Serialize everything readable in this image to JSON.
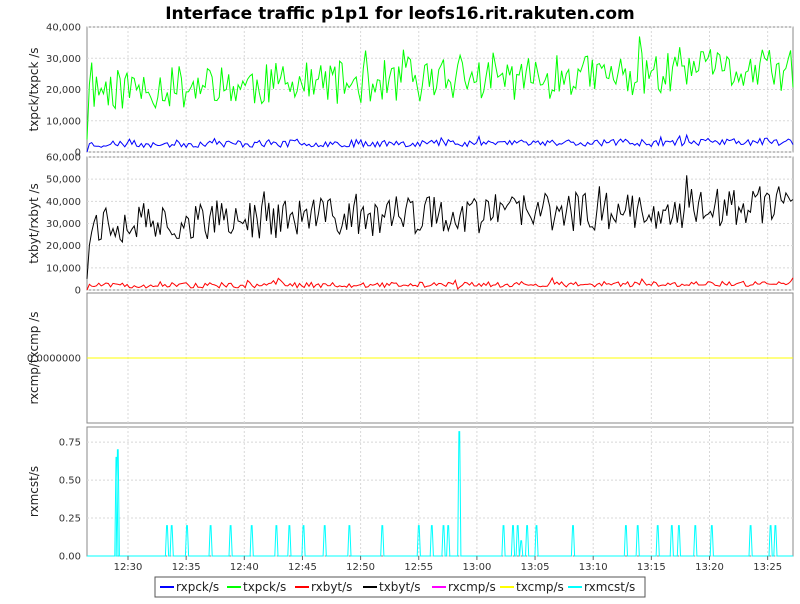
{
  "chart_data": {
    "type": "line",
    "title": "Interface traffic p1p1 for leofs16.rit.rakuten.com",
    "time_ticks": [
      "12:30",
      "12:35",
      "12:40",
      "12:45",
      "12:50",
      "12:55",
      "13:00",
      "13:05",
      "13:10",
      "13:15",
      "13:20",
      "13:25"
    ],
    "legend": [
      {
        "name": "rxpck/s",
        "color": "#0000ff"
      },
      {
        "name": "txpck/s",
        "color": "#00ff00"
      },
      {
        "name": "rxbyt/s",
        "color": "#ff0000"
      },
      {
        "name": "txbyt/s",
        "color": "#000000"
      },
      {
        "name": "rxcmp/s",
        "color": "#ff00ff"
      },
      {
        "name": "txcmp/s",
        "color": "#ffff00"
      },
      {
        "name": "rxmcst/s",
        "color": "#00ffff"
      }
    ],
    "panels": [
      {
        "ylabel": "txpck/txpck /s",
        "ylim": [
          0,
          40000
        ],
        "yticks": [
          0,
          10000,
          20000,
          30000,
          40000
        ],
        "ytick_labels": [
          "0",
          "10,000",
          "20,000",
          "30,000",
          "40,000"
        ],
        "series": [
          {
            "name": "txpck/s",
            "color": "#00ff00",
            "base": 20000,
            "trend": 6000,
            "amp": 7000,
            "spikes": 0.12,
            "spike_amp": 9000,
            "seed": 11,
            "start": 4000
          },
          {
            "name": "rxpck/s",
            "color": "#0000ff",
            "base": 2500,
            "trend": 800,
            "amp": 1200,
            "spikes": 0.08,
            "spike_amp": 2000,
            "seed": 23,
            "start": 0
          }
        ]
      },
      {
        "ylabel": "txbyt/rxbyt /s",
        "ylim": [
          0,
          60000
        ],
        "yticks": [
          0,
          10000,
          20000,
          30000,
          40000,
          50000,
          60000
        ],
        "ytick_labels": [
          "0",
          "10,000",
          "20,000",
          "30,000",
          "40,000",
          "50,000",
          "60,000"
        ],
        "series": [
          {
            "name": "txbyt/s",
            "color": "#000000",
            "base": 30000,
            "trend": 8000,
            "amp": 9000,
            "spikes": 0.12,
            "spike_amp": 14000,
            "seed": 37,
            "start": 5000
          },
          {
            "name": "rxbyt/s",
            "color": "#ff0000",
            "base": 2000,
            "trend": 800,
            "amp": 1200,
            "spikes": 0.1,
            "spike_amp": 3500,
            "seed": 51,
            "start": 0
          }
        ]
      },
      {
        "ylabel": "rxcmp/txcmp /s",
        "ylim": [
          -1,
          1
        ],
        "yticks": [
          0
        ],
        "ytick_labels": [
          "0.0000000"
        ],
        "series": [
          {
            "name": "rxcmp/s",
            "color": "#ff00ff",
            "constant": 0
          },
          {
            "name": "txcmp/s",
            "color": "#ffff00",
            "constant": 0
          }
        ]
      },
      {
        "ylabel": "rxmcst/s",
        "ylim": [
          0,
          0.85
        ],
        "yticks": [
          0,
          0.25,
          0.5,
          0.75
        ],
        "ytick_labels": [
          "0.00",
          "0.25",
          "0.50",
          "0.75"
        ],
        "series": [
          {
            "name": "rxmcst/s",
            "color": "#00ffff",
            "pulses": [
              [
                12.5,
                0.65
              ],
              [
                13.1,
                0.7
              ],
              [
                34,
                0.2
              ],
              [
                36,
                0.2
              ],
              [
                42.5,
                0.2
              ],
              [
                52.5,
                0.2
              ],
              [
                61,
                0.2
              ],
              [
                70,
                0.2
              ],
              [
                80.5,
                0.2
              ],
              [
                86,
                0.2
              ],
              [
                92,
                0.2
              ],
              [
                101,
                0.2
              ],
              [
                111.5,
                0.2
              ],
              [
                125.5,
                0.2
              ],
              [
                141,
                0.2
              ],
              [
                146.5,
                0.2
              ],
              [
                151.5,
                0.2
              ],
              [
                153.5,
                0.2
              ],
              [
                158.2,
                0.82
              ],
              [
                177,
                0.2
              ],
              [
                181,
                0.2
              ],
              [
                183,
                0.2
              ],
              [
                184.5,
                0.1
              ],
              [
                187,
                0.2
              ],
              [
                191,
                0.2
              ],
              [
                206.5,
                0.2
              ],
              [
                229,
                0.2
              ],
              [
                234,
                0.2
              ],
              [
                242.5,
                0.2
              ],
              [
                248.5,
                0.2
              ],
              [
                251.5,
                0.2
              ],
              [
                258.5,
                0.2
              ],
              [
                265.5,
                0.2
              ],
              [
                282,
                0.2
              ],
              [
                290.5,
                0.2
              ],
              [
                292.5,
                0.2
              ]
            ]
          }
        ]
      }
    ]
  }
}
